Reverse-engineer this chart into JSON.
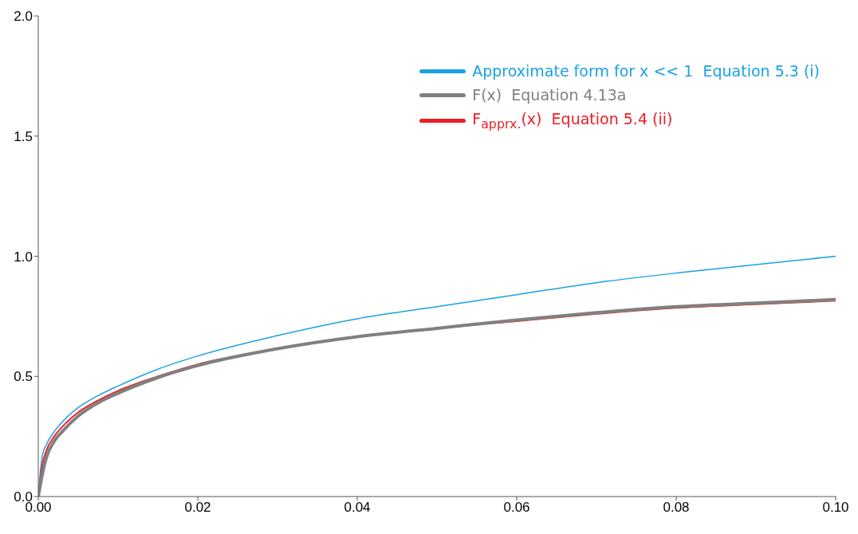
{
  "chart_data": {
    "type": "line",
    "x": [
      0,
      0.0005,
      0.001,
      0.002,
      0.003,
      0.005,
      0.0075,
      0.01,
      0.015,
      0.02,
      0.03,
      0.04,
      0.05,
      0.06,
      0.07,
      0.08,
      0.09,
      0.1
    ],
    "series": [
      {
        "name": "F(x)  Equation 4.13a",
        "color": "#808080",
        "values": [
          0,
          0.09,
          0.16,
          0.23,
          0.27,
          0.335,
          0.39,
          0.43,
          0.495,
          0.545,
          0.615,
          0.665,
          0.7,
          0.735,
          0.765,
          0.79,
          0.805,
          0.82
        ]
      },
      {
        "name": "F$_{apprx.}$(x)  Equation 5.4 (ii)",
        "color": "#ed1c24",
        "values": [
          0,
          0.13,
          0.19,
          0.25,
          0.29,
          0.35,
          0.4,
          0.44,
          0.5,
          0.55,
          0.615,
          0.665,
          0.7,
          0.73,
          0.76,
          0.785,
          0.8,
          0.815
        ]
      },
      {
        "name": "Approximate form for x << 1  Equation 5.3 (i)",
        "color": "#1ba1e2",
        "values": [
          0,
          0.17,
          0.215,
          0.27,
          0.31,
          0.37,
          0.42,
          0.46,
          0.53,
          0.585,
          0.67,
          0.74,
          0.79,
          0.84,
          0.89,
          0.93,
          0.965,
          1.0
        ]
      }
    ],
    "xlim": [
      0,
      0.1
    ],
    "xticks": [
      {
        "value": 0,
        "label": "0.00"
      },
      {
        "value": 0.02,
        "label": "0.02"
      },
      {
        "value": 0.04,
        "label": "0.04"
      },
      {
        "value": 0.06,
        "label": "0.06"
      },
      {
        "value": 0.08,
        "label": "0.08"
      },
      {
        "value": 0.1,
        "label": "0.10"
      }
    ],
    "ylim": [
      0,
      2
    ],
    "yticks": [
      {
        "value": 0,
        "label": "0.0"
      },
      {
        "value": 0.5,
        "label": "0.5"
      },
      {
        "value": 1,
        "label": "1.0"
      },
      {
        "value": 1.5,
        "label": "1.5"
      },
      {
        "value": 2,
        "label": "2.0"
      }
    ],
    "legend": "top right",
    "marker": "none",
    "line_style": "solid",
    "grid": false
  }
}
